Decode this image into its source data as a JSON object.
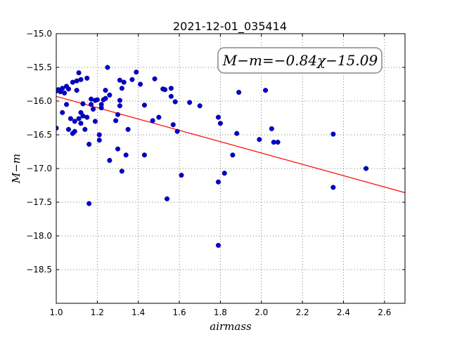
{
  "chart_data": {
    "type": "scatter",
    "title": "2021-12-01_035414",
    "xlabel": "airmass",
    "ylabel": "M−m",
    "xlim": [
      1.0,
      2.7
    ],
    "ylim": [
      -15.0,
      -19.0
    ],
    "y_inverted": true,
    "grid": true,
    "grid_style": "dotted",
    "x_ticks": [
      1.0,
      1.2,
      1.4,
      1.6,
      1.8,
      2.0,
      2.2,
      2.4,
      2.6
    ],
    "x_tick_labels": [
      "1.0",
      "1.2",
      "1.4",
      "1.6",
      "1.8",
      "2.0",
      "2.2",
      "2.4",
      "2.6"
    ],
    "y_ticks": [
      -15.0,
      -15.5,
      -16.0,
      -16.5,
      -17.0,
      -17.5,
      -18.0,
      -18.5
    ],
    "y_tick_labels": [
      "−15.0",
      "−15.5",
      "−16.0",
      "−16.5",
      "−17.0",
      "−17.5",
      "−18.0",
      "−18.5"
    ],
    "annotation": "M−m=−0.84χ−15.09",
    "fit_line": {
      "slope": -0.84,
      "intercept": -15.09,
      "color": "#ff0000"
    },
    "point_color": "#0000cc",
    "points": [
      [
        1.0,
        -16.4
      ],
      [
        1.0,
        -15.85
      ],
      [
        1.01,
        -15.83
      ],
      [
        1.02,
        -15.86
      ],
      [
        1.03,
        -15.81
      ],
      [
        1.03,
        -16.17
      ],
      [
        1.04,
        -15.88
      ],
      [
        1.05,
        -15.78
      ],
      [
        1.05,
        -16.05
      ],
      [
        1.06,
        -16.42
      ],
      [
        1.06,
        -15.82
      ],
      [
        1.07,
        -16.26
      ],
      [
        1.08,
        -16.48
      ],
      [
        1.08,
        -15.72
      ],
      [
        1.09,
        -16.3
      ],
      [
        1.09,
        -16.45
      ],
      [
        1.1,
        -15.84
      ],
      [
        1.1,
        -15.7
      ],
      [
        1.11,
        -16.26
      ],
      [
        1.11,
        -15.58
      ],
      [
        1.12,
        -16.17
      ],
      [
        1.12,
        -16.33
      ],
      [
        1.12,
        -15.68
      ],
      [
        1.13,
        -16.04
      ],
      [
        1.13,
        -16.22
      ],
      [
        1.14,
        -16.42
      ],
      [
        1.15,
        -15.66
      ],
      [
        1.15,
        -16.24
      ],
      [
        1.16,
        -16.64
      ],
      [
        1.16,
        -17.52
      ],
      [
        1.17,
        -16.05
      ],
      [
        1.17,
        -15.97
      ],
      [
        1.18,
        -16.12
      ],
      [
        1.19,
        -16.3
      ],
      [
        1.19,
        -15.99
      ],
      [
        1.2,
        -15.98
      ],
      [
        1.21,
        -16.5
      ],
      [
        1.21,
        -16.58
      ],
      [
        1.22,
        -16.1
      ],
      [
        1.22,
        -16.05
      ],
      [
        1.23,
        -15.98
      ],
      [
        1.24,
        -15.96
      ],
      [
        1.24,
        -15.84
      ],
      [
        1.25,
        -15.5
      ],
      [
        1.26,
        -16.88
      ],
      [
        1.26,
        -15.91
      ],
      [
        1.29,
        -16.29
      ],
      [
        1.3,
        -16.2
      ],
      [
        1.3,
        -16.71
      ],
      [
        1.31,
        -15.99
      ],
      [
        1.31,
        -16.07
      ],
      [
        1.31,
        -15.69
      ],
      [
        1.32,
        -15.81
      ],
      [
        1.32,
        -17.04
      ],
      [
        1.33,
        -15.72
      ],
      [
        1.34,
        -16.8
      ],
      [
        1.35,
        -16.42
      ],
      [
        1.37,
        -15.68
      ],
      [
        1.39,
        -15.57
      ],
      [
        1.41,
        -15.75
      ],
      [
        1.43,
        -16.06
      ],
      [
        1.43,
        -16.8
      ],
      [
        1.47,
        -16.29
      ],
      [
        1.48,
        -15.67
      ],
      [
        1.5,
        -16.24
      ],
      [
        1.52,
        -15.82
      ],
      [
        1.53,
        -15.83
      ],
      [
        1.54,
        -17.45
      ],
      [
        1.56,
        -15.81
      ],
      [
        1.56,
        -15.93
      ],
      [
        1.57,
        -16.35
      ],
      [
        1.58,
        -16.01
      ],
      [
        1.59,
        -16.45
      ],
      [
        1.61,
        -17.1
      ],
      [
        1.65,
        -16.02
      ],
      [
        1.7,
        -16.07
      ],
      [
        1.79,
        -16.24
      ],
      [
        1.79,
        -17.2
      ],
      [
        1.79,
        -18.14
      ],
      [
        1.8,
        -16.33
      ],
      [
        1.82,
        -17.07
      ],
      [
        1.86,
        -16.8
      ],
      [
        1.88,
        -16.48
      ],
      [
        1.89,
        -15.87
      ],
      [
        1.99,
        -16.57
      ],
      [
        2.02,
        -15.84
      ],
      [
        2.05,
        -16.41
      ],
      [
        2.06,
        -16.61
      ],
      [
        2.08,
        -16.61
      ],
      [
        2.35,
        -16.49
      ],
      [
        2.35,
        -17.28
      ],
      [
        2.51,
        -17.0
      ]
    ]
  }
}
